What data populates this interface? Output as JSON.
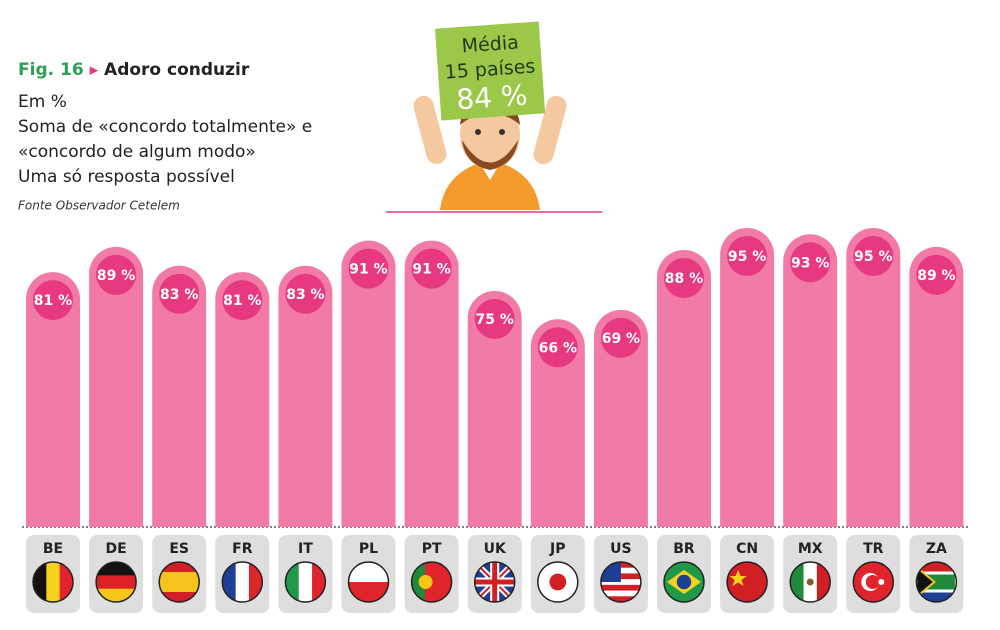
{
  "chart_data": {
    "type": "bar",
    "title": "Adoro conduzir",
    "figure": "Fig. 16",
    "subtitle": [
      "Em %",
      "Soma de «concordo totalmente» e",
      "«concordo de algum modo»",
      "Uma só resposta possível"
    ],
    "source": "Fonte  Observador Cetelem",
    "annotation": {
      "lines": [
        "Média",
        "15 países"
      ],
      "value": 84,
      "value_label": "84 %"
    },
    "categories": [
      "BE",
      "DE",
      "ES",
      "FR",
      "IT",
      "PL",
      "PT",
      "UK",
      "JP",
      "US",
      "BR",
      "CN",
      "MX",
      "TR",
      "ZA"
    ],
    "values": [
      81,
      89,
      83,
      81,
      83,
      91,
      91,
      75,
      66,
      69,
      88,
      95,
      93,
      95,
      89
    ],
    "value_labels": [
      "81 %",
      "89 %",
      "83 %",
      "81 %",
      "83 %",
      "91 %",
      "91 %",
      "75 %",
      "66 %",
      "69 %",
      "88 %",
      "95 %",
      "93 %",
      "95 %",
      "89 %"
    ],
    "color": "#f27aa6",
    "label_color": "#e6397f"
  }
}
